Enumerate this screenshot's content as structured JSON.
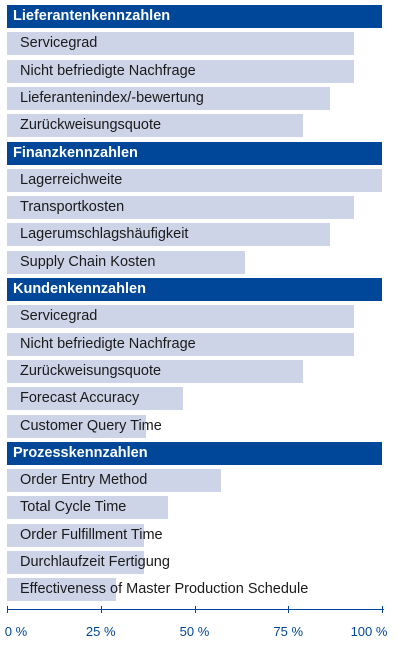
{
  "chart_data": {
    "type": "bar",
    "orientation": "horizontal",
    "xlim": [
      0,
      100
    ],
    "xticks": [
      "0 %",
      "25 %",
      "50 %",
      "75 %",
      "100 %"
    ],
    "colors": {
      "header": "#00479a",
      "bar": "#cdd4e8",
      "axis": "#00479a"
    },
    "groups": [
      {
        "title": "Lieferantenkennzahlen",
        "items": [
          {
            "label": "Servicegrad",
            "value": 92.5
          },
          {
            "label": "Nicht befriedigte Nachfrage",
            "value": 92.5
          },
          {
            "label": "Lieferantenindex/-bewertung",
            "value": 86
          },
          {
            "label": "Zurückweisungsquote",
            "value": 79
          }
        ]
      },
      {
        "title": "Finanzkennzahlen",
        "items": [
          {
            "label": "Lagerreichweite",
            "value": 100
          },
          {
            "label": "Transportkosten",
            "value": 92.5
          },
          {
            "label": "Lagerumschlagshäufigkeit",
            "value": 86
          },
          {
            "label": "Supply Chain Kosten",
            "value": 63.5
          }
        ]
      },
      {
        "title": "Kundenkennzahlen",
        "items": [
          {
            "label": "Servicegrad",
            "value": 92.5
          },
          {
            "label": "Nicht befriedigte Nachfrage",
            "value": 92.5
          },
          {
            "label": "Zurückweisungsquote",
            "value": 79
          },
          {
            "label": "Forecast Accuracy",
            "value": 47
          },
          {
            "label": "Customer Query Time",
            "value": 37
          }
        ]
      },
      {
        "title": "Prozesskennzahlen",
        "items": [
          {
            "label": "Order Entry Method",
            "value": 57
          },
          {
            "label": "Total Cycle Time",
            "value": 43
          },
          {
            "label": "Order Fulfillment Time",
            "value": 36.5
          },
          {
            "label": "Durchlaufzeit Fertigung",
            "value": 36.5
          },
          {
            "label": "Effectiveness of Master Production Schedule",
            "value": 29
          }
        ]
      }
    ]
  }
}
